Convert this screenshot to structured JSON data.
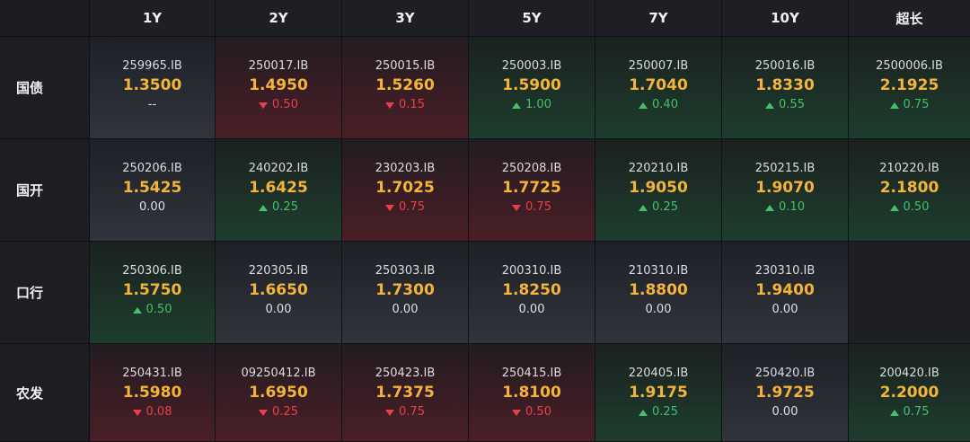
{
  "columns": [
    "1Y",
    "2Y",
    "3Y",
    "5Y",
    "7Y",
    "10Y",
    "超长"
  ],
  "colors": {
    "rate": "#f4b43a",
    "up": "#44c06a",
    "down": "#e8404a"
  },
  "rows": [
    {
      "label": "国债",
      "cells": [
        {
          "code": "259965.IB",
          "rate": "1.3500",
          "dir": "flat",
          "change": "--"
        },
        {
          "code": "250017.IB",
          "rate": "1.4950",
          "dir": "down",
          "change": "0.50"
        },
        {
          "code": "250015.IB",
          "rate": "1.5260",
          "dir": "down",
          "change": "0.15"
        },
        {
          "code": "250003.IB",
          "rate": "1.5900",
          "dir": "up",
          "change": "1.00"
        },
        {
          "code": "250007.IB",
          "rate": "1.7040",
          "dir": "up",
          "change": "0.40"
        },
        {
          "code": "250016.IB",
          "rate": "1.8330",
          "dir": "up",
          "change": "0.55"
        },
        {
          "code": "2500006.IB",
          "rate": "2.1925",
          "dir": "up",
          "change": "0.75"
        }
      ]
    },
    {
      "label": "国开",
      "cells": [
        {
          "code": "250206.IB",
          "rate": "1.5425",
          "dir": "flat",
          "change": "0.00"
        },
        {
          "code": "240202.IB",
          "rate": "1.6425",
          "dir": "up",
          "change": "0.25"
        },
        {
          "code": "230203.IB",
          "rate": "1.7025",
          "dir": "down",
          "change": "0.75"
        },
        {
          "code": "250208.IB",
          "rate": "1.7725",
          "dir": "down",
          "change": "0.75"
        },
        {
          "code": "220210.IB",
          "rate": "1.9050",
          "dir": "up",
          "change": "0.25"
        },
        {
          "code": "250215.IB",
          "rate": "1.9070",
          "dir": "up",
          "change": "0.10"
        },
        {
          "code": "210220.IB",
          "rate": "2.1800",
          "dir": "up",
          "change": "0.50"
        }
      ]
    },
    {
      "label": "口行",
      "cells": [
        {
          "code": "250306.IB",
          "rate": "1.5750",
          "dir": "up",
          "change": "0.50"
        },
        {
          "code": "220305.IB",
          "rate": "1.6650",
          "dir": "flat",
          "change": "0.00"
        },
        {
          "code": "250303.IB",
          "rate": "1.7300",
          "dir": "flat",
          "change": "0.00"
        },
        {
          "code": "200310.IB",
          "rate": "1.8250",
          "dir": "flat",
          "change": "0.00"
        },
        {
          "code": "210310.IB",
          "rate": "1.8800",
          "dir": "flat",
          "change": "0.00"
        },
        {
          "code": "230310.IB",
          "rate": "1.9400",
          "dir": "flat",
          "change": "0.00"
        },
        null
      ]
    },
    {
      "label": "农发",
      "cells": [
        {
          "code": "250431.IB",
          "rate": "1.5980",
          "dir": "down",
          "change": "0.08"
        },
        {
          "code": "09250412.IB",
          "rate": "1.6950",
          "dir": "down",
          "change": "0.25"
        },
        {
          "code": "250423.IB",
          "rate": "1.7375",
          "dir": "down",
          "change": "0.75"
        },
        {
          "code": "250415.IB",
          "rate": "1.8100",
          "dir": "down",
          "change": "0.50"
        },
        {
          "code": "220405.IB",
          "rate": "1.9175",
          "dir": "up",
          "change": "0.25"
        },
        {
          "code": "250420.IB",
          "rate": "1.9725",
          "dir": "flat",
          "change": "0.00"
        },
        {
          "code": "200420.IB",
          "rate": "2.2000",
          "dir": "up",
          "change": "0.75"
        }
      ]
    }
  ]
}
